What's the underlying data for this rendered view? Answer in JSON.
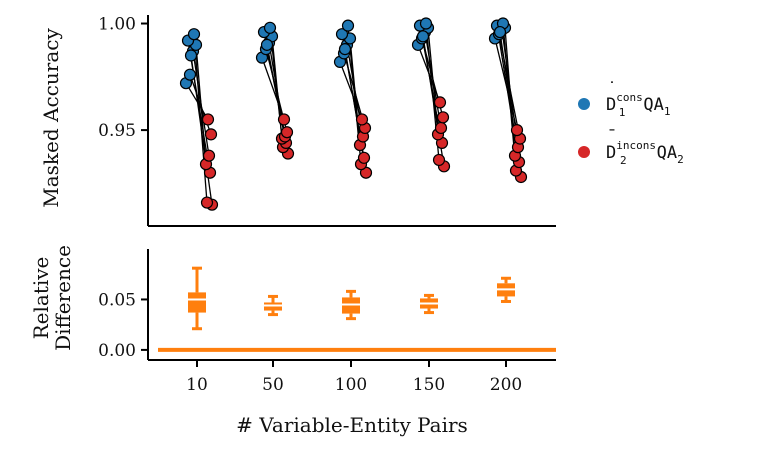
{
  "colors": {
    "consistent": "#1f77b4",
    "inconsistent": "#d62728",
    "relative": "#ff7f0e",
    "line": "#000000"
  },
  "chart_data": [
    {
      "type": "scatter",
      "panel": "top",
      "ylabel": "Masked Accuracy",
      "yticks": [
        "1.00",
        "0.95"
      ],
      "ytick_values": [
        1.0,
        0.95
      ],
      "ylim": [
        0.905,
        1.004
      ],
      "categories": [
        "10",
        "50",
        "100",
        "150",
        "200"
      ],
      "series": [
        {
          "legend_key": "cons",
          "color": "#1f77b4",
          "values": [
            [
              0.972,
              0.976,
              0.987,
              0.99,
              0.992,
              0.995,
              0.985
            ],
            [
              0.984,
              0.988,
              0.991,
              0.994,
              0.996,
              0.998,
              0.99
            ],
            [
              0.982,
              0.986,
              0.99,
              0.993,
              0.995,
              0.999,
              0.988
            ],
            [
              0.99,
              0.993,
              0.996,
              0.998,
              0.999,
              1.0,
              0.994
            ],
            [
              0.993,
              0.995,
              0.997,
              0.998,
              0.999,
              1.0,
              0.996
            ]
          ]
        },
        {
          "legend_key": "incons",
          "color": "#d62728",
          "values": [
            [
              0.915,
              0.916,
              0.93,
              0.934,
              0.938,
              0.948,
              0.955
            ],
            [
              0.939,
              0.942,
              0.944,
              0.946,
              0.947,
              0.949,
              0.955
            ],
            [
              0.93,
              0.934,
              0.937,
              0.943,
              0.947,
              0.951,
              0.955
            ],
            [
              0.933,
              0.936,
              0.944,
              0.948,
              0.951,
              0.956,
              0.963
            ],
            [
              0.928,
              0.931,
              0.935,
              0.938,
              0.942,
              0.946,
              0.95
            ]
          ]
        }
      ]
    },
    {
      "type": "box",
      "panel": "bottom",
      "ylabel": "Relative Difference",
      "xlabel": "# Variable-Entity Pairs",
      "categories": [
        "10",
        "50",
        "100",
        "150",
        "200"
      ],
      "yticks": [
        "0.05",
        "0.00"
      ],
      "ytick_values": [
        0.05,
        0.0
      ],
      "ylim": [
        -0.01,
        0.1
      ],
      "zero_line": 0.0,
      "boxes": [
        {
          "min": 0.021,
          "q1": 0.037,
          "median": 0.05,
          "q3": 0.057,
          "max": 0.081
        },
        {
          "min": 0.035,
          "q1": 0.039,
          "median": 0.044,
          "q3": 0.047,
          "max": 0.053
        },
        {
          "min": 0.031,
          "q1": 0.036,
          "median": 0.045,
          "q3": 0.052,
          "max": 0.058
        },
        {
          "min": 0.037,
          "q1": 0.041,
          "median": 0.046,
          "q3": 0.051,
          "max": 0.054
        },
        {
          "min": 0.048,
          "q1": 0.053,
          "median": 0.06,
          "q3": 0.066,
          "max": 0.071
        }
      ]
    }
  ],
  "legend": [
    {
      "base": "D",
      "accent": "˙",
      "sup": "cons",
      "sub": "1",
      "text": "QA",
      "text_sub": "1",
      "color": "#1f77b4"
    },
    {
      "base": "D",
      "accent": "¯",
      "sup": "incons",
      "sub": "2",
      "text": "QA",
      "text_sub": "2",
      "color": "#d62728"
    }
  ]
}
